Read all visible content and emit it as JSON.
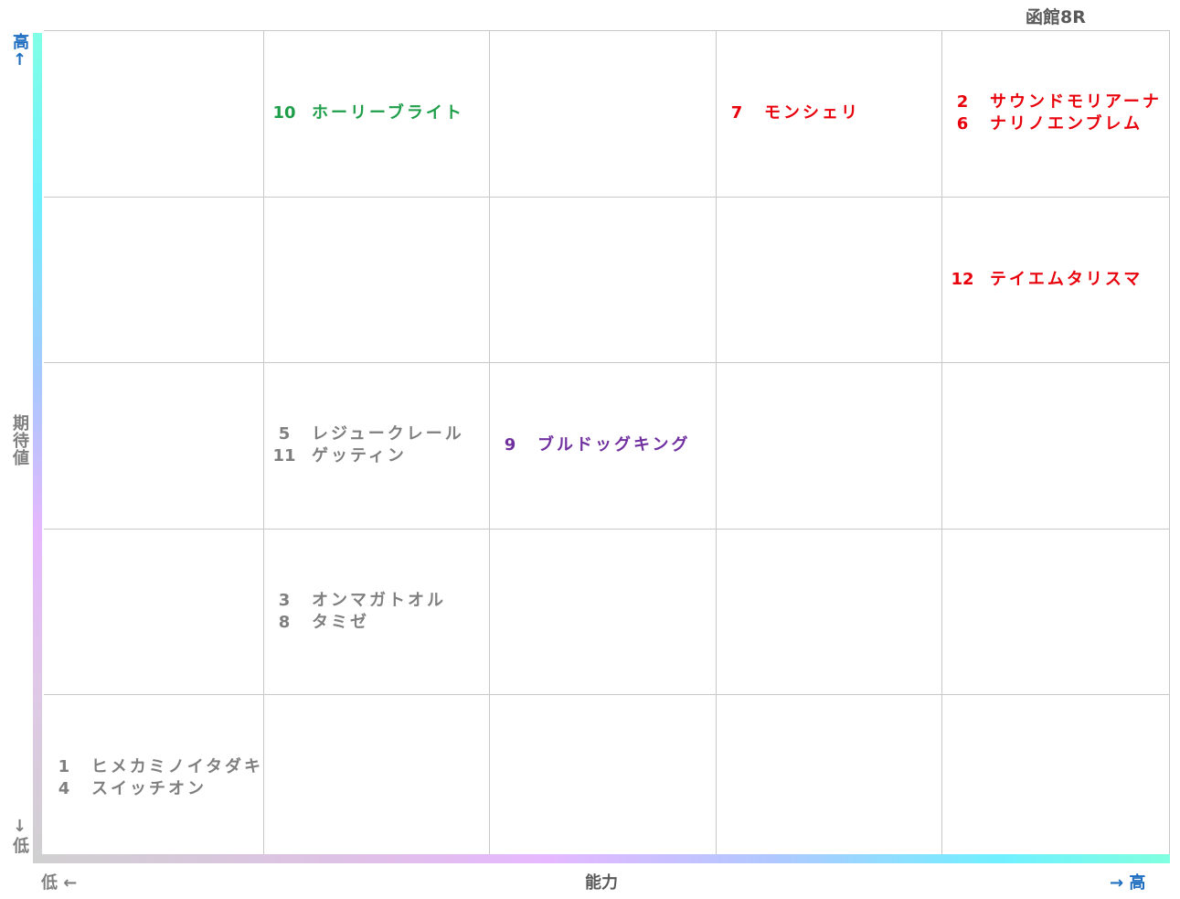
{
  "title": "函館8R",
  "y_axis": {
    "high": "高↑",
    "label": "期待値",
    "low": "↓低"
  },
  "x_axis": {
    "low": "低 ←",
    "label": "能力",
    "high": "→ 高"
  },
  "grid": {
    "rows": [
      [
        [],
        [
          {
            "no": "10",
            "name": "ホーリーブライト",
            "color": "#1f9e4a"
          }
        ],
        [],
        [
          {
            "no": "7",
            "name": "モンシェリ",
            "color": "#e8000b"
          }
        ],
        [
          {
            "no": "2",
            "name": "サウンドモリアーナ",
            "color": "#e8000b"
          },
          {
            "no": "6",
            "name": "ナリノエンブレム",
            "color": "#e8000b"
          }
        ]
      ],
      [
        [],
        [],
        [],
        [],
        [
          {
            "no": "12",
            "name": "テイエムタリスマ",
            "color": "#e8000b"
          }
        ]
      ],
      [
        [],
        [
          {
            "no": "5",
            "name": "レジュークレール",
            "color": "#7f7f7f"
          },
          {
            "no": "11",
            "name": "ゲッティン",
            "color": "#7f7f7f"
          }
        ],
        [
          {
            "no": "9",
            "name": "ブルドッグキング",
            "color": "#7030a0"
          }
        ],
        [],
        []
      ],
      [
        [],
        [
          {
            "no": "3",
            "name": "オンマガトオル",
            "color": "#7f7f7f"
          },
          {
            "no": "8",
            "name": "タミゼ",
            "color": "#7f7f7f"
          }
        ],
        [],
        [],
        []
      ],
      [
        [
          {
            "no": "1",
            "name": "ヒメカミノイタダキ",
            "color": "#7f7f7f"
          },
          {
            "no": "4",
            "name": "スイッチオン",
            "color": "#7f7f7f"
          }
        ],
        [],
        [],
        [],
        []
      ]
    ]
  }
}
